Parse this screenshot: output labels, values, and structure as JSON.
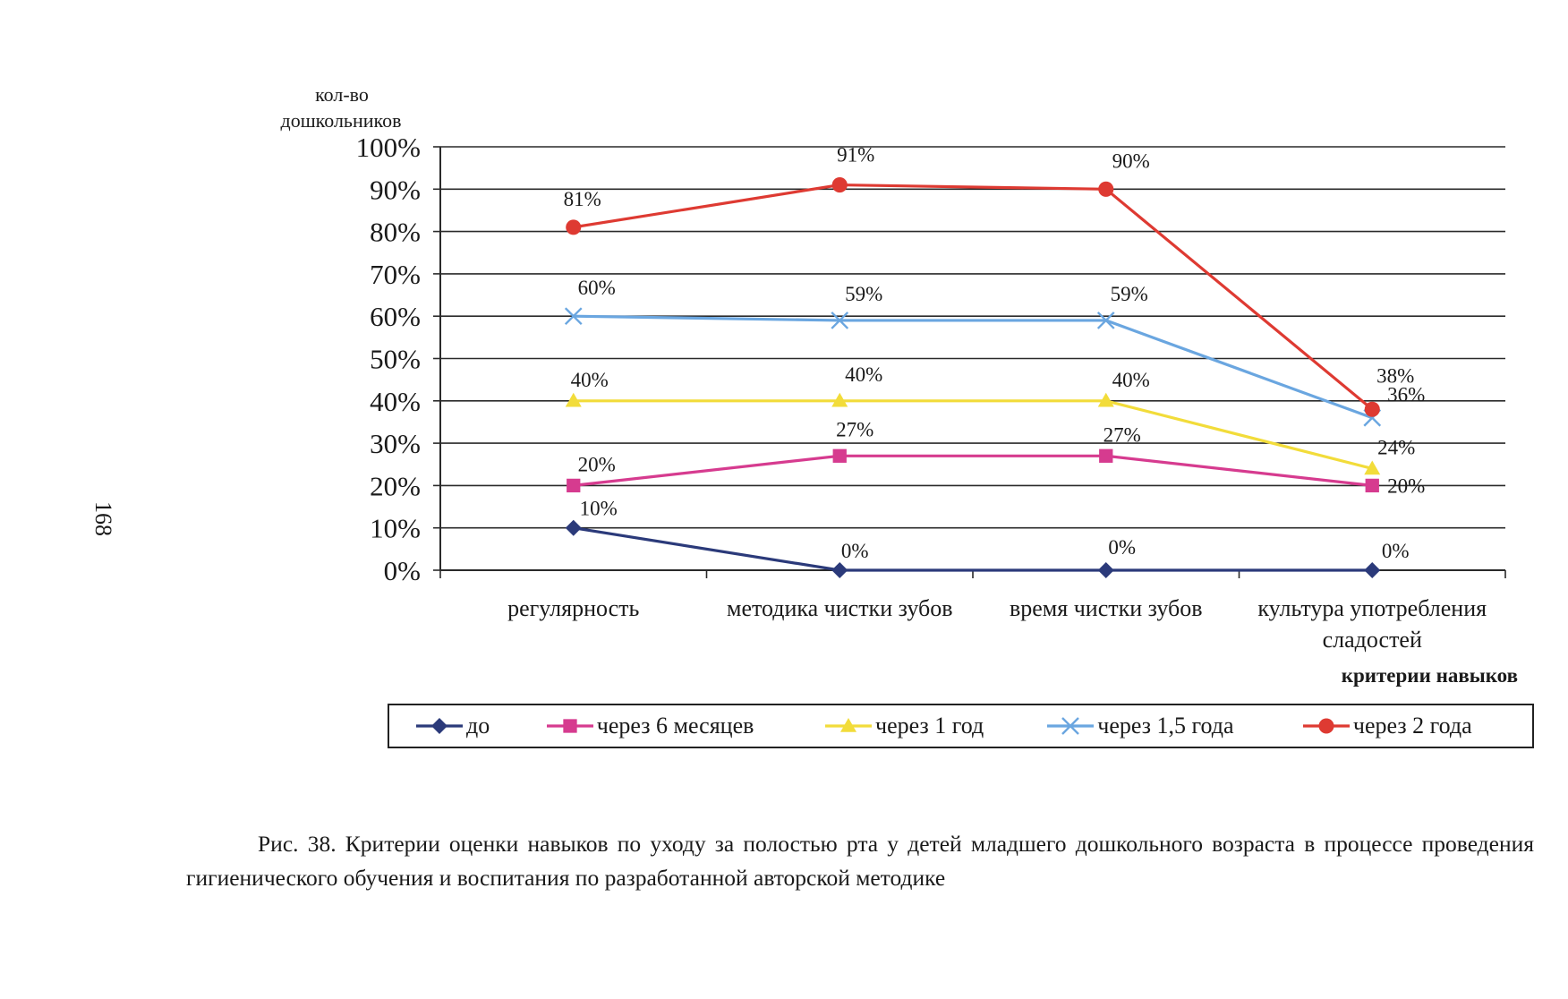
{
  "page_number": "168",
  "caption": "Рис. 38. Критерии оценки навыков по уходу за полостью рта у детей младшего дошкольного возраста в процессе проведения гигиенического обучения и воспитания по разработанной авторской методике",
  "chart_data": {
    "type": "line",
    "ylabel": [
      "кол-во",
      "дошкольников"
    ],
    "xlabel": "критерии навыков",
    "ylim": [
      0,
      100
    ],
    "yticks": [
      "0%",
      "10%",
      "20%",
      "30%",
      "40%",
      "50%",
      "60%",
      "70%",
      "80%",
      "90%",
      "100%"
    ],
    "categories": [
      [
        "регулярность"
      ],
      [
        "методика чистки зубов"
      ],
      [
        "время чистки зубов"
      ],
      [
        "культура употребления",
        "сладостей"
      ]
    ],
    "grid": true,
    "legend_position": "bottom",
    "series": [
      {
        "name": "до",
        "color": "#2b3a7a",
        "marker": "diamond",
        "values": [
          10,
          0,
          0,
          0
        ],
        "labels": [
          "10%",
          "0%",
          "0%",
          "0%"
        ]
      },
      {
        "name": "через 6 месяцев",
        "color": "#d63b8f",
        "marker": "square",
        "values": [
          20,
          27,
          27,
          20
        ],
        "labels": [
          "20%",
          "27%",
          "27%",
          "20%"
        ]
      },
      {
        "name": "через 1 год",
        "color": "#f2dc3a",
        "marker": "triangle",
        "values": [
          40,
          40,
          40,
          24
        ],
        "labels": [
          "40%",
          "40%",
          "40%",
          "24%"
        ]
      },
      {
        "name": "через 1,5 года",
        "color": "#6aa6e0",
        "marker": "x",
        "values": [
          60,
          59,
          59,
          36
        ],
        "labels": [
          "60%",
          "59%",
          "59%",
          "36%"
        ]
      },
      {
        "name": "через 2 года",
        "color": "#de3a32",
        "marker": "circle",
        "values": [
          81,
          91,
          90,
          38
        ],
        "labels": [
          "81%",
          "91%",
          "90%",
          "38%"
        ]
      }
    ]
  }
}
